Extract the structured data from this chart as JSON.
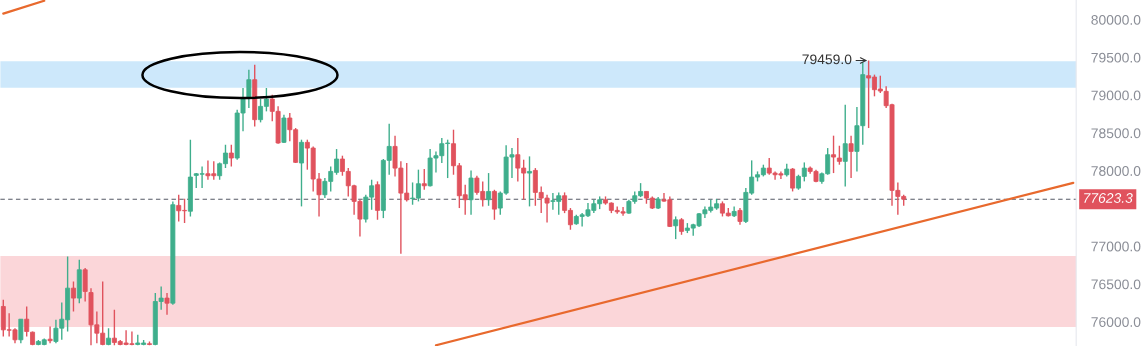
{
  "chart_data": {
    "type": "candlestick",
    "categories": [
      null,
      null,
      null,
      null,
      null,
      null,
      null,
      null,
      null,
      null,
      null,
      null,
      null,
      null,
      null,
      null,
      null,
      null,
      null,
      null,
      null,
      null,
      null,
      null,
      null,
      null,
      null,
      null,
      null,
      null,
      null,
      null,
      null,
      null,
      null,
      null,
      null,
      null,
      null,
      null,
      null,
      null,
      null,
      null,
      null,
      null,
      null,
      null,
      null,
      null,
      null,
      null,
      null,
      null,
      null,
      null,
      null,
      null,
      null,
      null,
      null,
      null,
      null,
      null,
      null,
      null,
      null,
      null,
      null,
      null,
      null,
      null,
      null,
      null,
      null,
      null,
      null,
      null,
      null,
      null,
      null,
      null,
      null,
      null,
      null,
      null,
      null,
      null,
      null,
      null,
      null,
      null,
      null,
      null,
      null,
      null,
      null,
      null,
      null,
      null,
      null,
      null,
      null,
      null,
      null,
      null,
      null,
      null,
      null,
      null,
      null,
      null,
      null,
      null,
      null,
      null,
      null,
      null,
      null,
      null,
      null,
      null,
      null,
      null,
      null,
      null,
      null,
      null,
      null,
      null,
      null,
      null,
      null,
      null,
      null,
      null,
      null,
      null,
      null,
      null,
      null,
      null,
      null,
      null,
      null,
      null,
      null,
      null,
      null,
      null,
      null,
      null,
      null,
      null,
      null,
      null,
      null,
      null,
      null,
      null,
      null,
      null,
      null,
      null,
      null,
      null,
      null,
      null,
      null,
      null,
      null,
      null,
      null,
      null,
      null,
      null,
      null,
      null,
      null,
      null,
      null,
      null,
      null,
      null
    ],
    "ylim": [
      75680,
      80260
    ],
    "yticks": [
      {
        "value": 76000,
        "label": "76000.0"
      },
      {
        "value": 76500,
        "label": "76500.0"
      },
      {
        "value": 77000,
        "label": "77000.0"
      },
      {
        "value": 78000,
        "label": "78000.0"
      },
      {
        "value": 78500,
        "label": "78500.0"
      },
      {
        "value": 79000,
        "label": "79000.0"
      },
      {
        "value": 79500,
        "label": "79500.0"
      },
      {
        "value": 80000,
        "label": "80000.0"
      }
    ],
    "tick_labels": "y",
    "grid": false,
    "legend": false,
    "ohlc": [
      [
        76203,
        76292,
        75806,
        75894
      ],
      [
        75894,
        76115,
        75806,
        75890
      ],
      [
        75894,
        75916,
        75718,
        75762
      ],
      [
        75762,
        76035,
        75718,
        76035
      ],
      [
        76035,
        76203,
        75806,
        75872
      ],
      [
        75863,
        75872,
        75690,
        75700
      ],
      [
        75700,
        75760,
        75690,
        75740
      ],
      [
        75700,
        75780,
        75690,
        75762
      ],
      [
        75770,
        75938,
        75718,
        75750
      ],
      [
        75740,
        76027,
        75718,
        75916
      ],
      [
        75916,
        76256,
        75762,
        76035
      ],
      [
        76027,
        76865,
        75872,
        76446
      ],
      [
        76446,
        76534,
        76137,
        76314
      ],
      [
        76314,
        76821,
        76247,
        76689
      ],
      [
        76689,
        76711,
        76269,
        76402
      ],
      [
        76388,
        76446,
        75690,
        75960
      ],
      [
        75960,
        76137,
        75718,
        75850
      ],
      [
        75850,
        76534,
        75690,
        75700
      ],
      [
        75700,
        75916,
        75690,
        75784
      ],
      [
        75784,
        76159,
        75690,
        75727
      ],
      [
        75740,
        75760,
        75690,
        75700
      ],
      [
        75720,
        75890,
        75690,
        75700
      ],
      [
        75710,
        75872,
        75690,
        75700
      ],
      [
        75700,
        75828,
        75690,
        75720
      ],
      [
        75700,
        75760,
        75690,
        75720
      ],
      [
        75710,
        75740,
        75690,
        75700
      ],
      [
        75700,
        76380,
        75690,
        76269
      ],
      [
        76269,
        76468,
        76159,
        76314
      ],
      [
        76314,
        76380,
        76093,
        76247
      ],
      [
        76247,
        77594,
        76225,
        77550
      ],
      [
        77541,
        77682,
        77329,
        77470
      ],
      [
        77475,
        77629,
        77307,
        77470
      ],
      [
        77464,
        78411,
        77395,
        77916
      ],
      [
        77938,
        77969,
        77770,
        77960
      ],
      [
        77955,
        78057,
        77770,
        77960
      ],
      [
        77960,
        78137,
        77881,
        77934
      ],
      [
        77960,
        78124,
        77881,
        77934
      ],
      [
        77934,
        78110,
        77881,
        78093
      ],
      [
        78093,
        78345,
        78035,
        78234
      ],
      [
        78234,
        78345,
        78057,
        78168
      ],
      [
        78168,
        78808,
        78146,
        78764
      ],
      [
        78764,
        79095,
        78521,
        78963
      ],
      [
        78963,
        79338,
        78830,
        79205
      ],
      [
        79205,
        79404,
        78587,
        78676
      ],
      [
        78676,
        78949,
        78640,
        78852
      ],
      [
        78852,
        79095,
        78786,
        78949
      ],
      [
        78949,
        79007,
        78654,
        78786
      ],
      [
        78786,
        78852,
        78358,
        78367
      ],
      [
        78376,
        78742,
        78367,
        78698
      ],
      [
        78698,
        78764,
        78389,
        78543
      ],
      [
        78543,
        78565,
        78102,
        78111
      ],
      [
        78102,
        78411,
        77528,
        78376
      ],
      [
        78376,
        78411,
        78014,
        78300
      ],
      [
        78300,
        78322,
        77726,
        77890
      ],
      [
        77890,
        77969,
        77395,
        77682
      ],
      [
        77682,
        77903,
        77638,
        77859
      ],
      [
        77859,
        78057,
        77726,
        77991
      ],
      [
        77978,
        78287,
        77947,
        78155
      ],
      [
        78155,
        78199,
        77934,
        77991
      ],
      [
        77991,
        78035,
        77660,
        77801
      ],
      [
        77801,
        77815,
        77417,
        77594
      ],
      [
        77594,
        77616,
        77130,
        77360
      ],
      [
        77360,
        77682,
        77316,
        77651
      ],
      [
        77651,
        77881,
        77483,
        77801
      ],
      [
        77815,
        77859,
        77351,
        77475
      ],
      [
        77475,
        78155,
        77373,
        78137
      ],
      [
        78137,
        78622,
        77947,
        78322
      ],
      [
        78322,
        78464,
        77925,
        78035
      ],
      [
        78035,
        78124,
        76901,
        77704
      ],
      [
        77704,
        78102,
        77594,
        77616
      ],
      [
        77630,
        77845,
        77550,
        77638
      ],
      [
        77638,
        78014,
        77594,
        77828
      ],
      [
        77828,
        78022,
        77748,
        77801
      ],
      [
        77801,
        78287,
        77792,
        78168
      ],
      [
        78168,
        78256,
        77978,
        78199
      ],
      [
        78199,
        78433,
        78102,
        78358
      ],
      [
        78360,
        78411,
        77903,
        78367
      ],
      [
        78358,
        78543,
        77947,
        78066
      ],
      [
        78066,
        78102,
        77506,
        77669
      ],
      [
        77682,
        77815,
        77417,
        77616
      ],
      [
        77616,
        78004,
        77417,
        77903
      ],
      [
        77903,
        77934,
        77682,
        77713
      ],
      [
        77726,
        77859,
        77528,
        77616
      ],
      [
        77616,
        77969,
        77536,
        77726
      ],
      [
        77726,
        77748,
        77351,
        77492
      ],
      [
        77506,
        77726,
        77417,
        77704
      ],
      [
        77704,
        78336,
        77682,
        78181
      ],
      [
        78181,
        78300,
        77903,
        78212
      ],
      [
        78212,
        78433,
        77859,
        78035
      ],
      [
        78035,
        78146,
        77616,
        77969
      ],
      [
        77969,
        78190,
        77528,
        77991
      ],
      [
        78004,
        78035,
        77536,
        77713
      ],
      [
        77713,
        77792,
        77439,
        77638
      ],
      [
        77638,
        77682,
        77316,
        77572
      ],
      [
        77594,
        77704,
        77483,
        77603
      ],
      [
        77594,
        77713,
        77417,
        77669
      ],
      [
        77669,
        77713,
        77439,
        77475
      ],
      [
        77475,
        77506,
        77219,
        77285
      ],
      [
        77298,
        77417,
        77285,
        77395
      ],
      [
        77395,
        77439,
        77263,
        77417
      ],
      [
        77404,
        77572,
        77386,
        77483
      ],
      [
        77475,
        77616,
        77439,
        77563
      ],
      [
        77563,
        77660,
        77492,
        77616
      ],
      [
        77616,
        77660,
        77550,
        77572
      ],
      [
        77572,
        77581,
        77439,
        77475
      ],
      [
        77475,
        77528,
        77430,
        77457
      ],
      [
        77457,
        77519,
        77404,
        77439
      ],
      [
        77439,
        77616,
        77430,
        77594
      ],
      [
        77594,
        77726,
        77563,
        77669
      ],
      [
        77669,
        77836,
        77651,
        77726
      ],
      [
        77726,
        77726,
        77563,
        77638
      ],
      [
        77638,
        77660,
        77492,
        77506
      ],
      [
        77506,
        77651,
        77492,
        77625
      ],
      [
        77616,
        77704,
        77590,
        77598
      ],
      [
        77616,
        77660,
        77254,
        77263
      ],
      [
        77271,
        77395,
        77095,
        77351
      ],
      [
        77351,
        77373,
        77152,
        77197
      ],
      [
        77210,
        77307,
        77175,
        77241
      ],
      [
        77241,
        77298,
        77139,
        77285
      ],
      [
        77271,
        77439,
        77254,
        77430
      ],
      [
        77430,
        77528,
        77373,
        77483
      ],
      [
        77475,
        77616,
        77448,
        77519
      ],
      [
        77506,
        77625,
        77483,
        77563
      ],
      [
        77563,
        77594,
        77395,
        77439
      ],
      [
        77439,
        77506,
        77395,
        77404
      ],
      [
        77404,
        77528,
        77386,
        77461
      ],
      [
        77475,
        77506,
        77285,
        77329
      ],
      [
        77329,
        77770,
        77307,
        77713
      ],
      [
        77704,
        78137,
        77682,
        77916
      ],
      [
        77916,
        77991,
        77859,
        77947
      ],
      [
        77947,
        78080,
        77925,
        78035
      ],
      [
        78035,
        78168,
        77947,
        77969
      ],
      [
        77969,
        77991,
        77881,
        77947
      ],
      [
        77960,
        77991,
        77890,
        77943
      ],
      [
        77947,
        78093,
        77925,
        78022
      ],
      [
        78022,
        78035,
        77726,
        77770
      ],
      [
        77770,
        77947,
        77748,
        77925
      ],
      [
        77925,
        78110,
        77859,
        78035
      ],
      [
        78035,
        78057,
        77960,
        77991
      ],
      [
        77991,
        78014,
        77846,
        77859
      ],
      [
        77859,
        77978,
        77828,
        77960
      ],
      [
        77960,
        78300,
        77947,
        78212
      ],
      [
        78212,
        78464,
        77969,
        78181
      ],
      [
        78168,
        78331,
        78080,
        78124
      ],
      [
        78124,
        78874,
        77792,
        78358
      ],
      [
        78358,
        78464,
        77903,
        78256
      ],
      [
        78256,
        78843,
        77991,
        78596
      ],
      [
        78596,
        79435,
        78345,
        79272
      ],
      [
        79258,
        79459,
        78565,
        79227
      ],
      [
        79240,
        79272,
        78985,
        79073
      ],
      [
        79082,
        79258,
        79029,
        79055
      ],
      [
        79051,
        79117,
        78830,
        78861
      ],
      [
        78874,
        78887,
        77536,
        77740
      ],
      [
        77740,
        77845,
        77417,
        77660
      ],
      [
        77660,
        77682,
        77536,
        77623.3
      ],
      null,
      null,
      null,
      null,
      null,
      null,
      null,
      null,
      null,
      null,
      null,
      null,
      null,
      null,
      null,
      null,
      null,
      null,
      null,
      null,
      null,
      null,
      null,
      null,
      null,
      null,
      null,
      null,
      null
    ],
    "colors": [
      "#e0525d",
      "#e0525d",
      "#e0525d",
      "#3fae8c",
      "#e0525d",
      "#e0525d",
      "#3fae8c",
      "#3fae8c",
      "#e0525d",
      "#3fae8c",
      "#3fae8c",
      "#3fae8c",
      "#e0525d",
      "#3fae8c",
      "#e0525d",
      "#e0525d",
      "#e0525d",
      "#e0525d",
      "#3fae8c",
      "#e0525d",
      "#e0525d",
      "#e0525d",
      "#e0525d",
      "#3fae8c",
      "#3fae8c",
      "#e0525d",
      "#3fae8c",
      "#3fae8c",
      "#e0525d",
      "#3fae8c",
      "#e0525d",
      "#e0525d",
      "#3fae8c",
      "#3fae8c",
      "#3fae8c",
      "#e0525d",
      "#e0525d",
      "#3fae8c",
      "#3fae8c",
      "#e0525d",
      "#3fae8c",
      "#3fae8c",
      "#3fae8c",
      "#e0525d",
      "#3fae8c",
      "#3fae8c",
      "#e0525d",
      "#e0525d",
      "#3fae8c",
      "#e0525d",
      "#e0525d",
      "#3fae8c",
      "#e0525d",
      "#e0525d",
      "#e0525d",
      "#3fae8c",
      "#3fae8c",
      "#3fae8c",
      "#e0525d",
      "#e0525d",
      "#e0525d",
      "#e0525d",
      "#3fae8c",
      "#3fae8c",
      "#e0525d",
      "#3fae8c",
      "#3fae8c",
      "#e0525d",
      "#e0525d",
      "#e0525d",
      "#3fae8c",
      "#3fae8c",
      "#e0525d",
      "#3fae8c",
      "#3fae8c",
      "#3fae8c",
      "#3fae8c",
      "#e0525d",
      "#e0525d",
      "#e0525d",
      "#3fae8c",
      "#e0525d",
      "#e0525d",
      "#3fae8c",
      "#e0525d",
      "#3fae8c",
      "#3fae8c",
      "#3fae8c",
      "#e0525d",
      "#e0525d",
      "#3fae8c",
      "#e0525d",
      "#e0525d",
      "#e0525d",
      "#3fae8c",
      "#3fae8c",
      "#e0525d",
      "#e0525d",
      "#3fae8c",
      "#3fae8c",
      "#3fae8c",
      "#3fae8c",
      "#3fae8c",
      "#e0525d",
      "#e0525d",
      "#e0525d",
      "#e0525d",
      "#3fae8c",
      "#3fae8c",
      "#3fae8c",
      "#e0525d",
      "#e0525d",
      "#3fae8c",
      "#e0525d",
      "#e0525d",
      "#3fae8c",
      "#e0525d",
      "#3fae8c",
      "#3fae8c",
      "#3fae8c",
      "#3fae8c",
      "#3fae8c",
      "#3fae8c",
      "#e0525d",
      "#e0525d",
      "#3fae8c",
      "#e0525d",
      "#3fae8c",
      "#3fae8c",
      "#3fae8c",
      "#3fae8c",
      "#e0525d",
      "#e0525d",
      "#e0525d",
      "#3fae8c",
      "#e0525d",
      "#3fae8c",
      "#3fae8c",
      "#e0525d",
      "#e0525d",
      "#3fae8c",
      "#3fae8c",
      "#e0525d",
      "#e0525d",
      "#3fae8c",
      "#e0525d",
      "#3fae8c",
      "#3fae8c",
      "#e0525d",
      "#e0525d",
      "#e0525d",
      "#e0525d",
      "#e0525d",
      "#e0525d",
      "#e0525d",
      null,
      null,
      null,
      null,
      null,
      null,
      null,
      null,
      null,
      null,
      null,
      null,
      null,
      null,
      null,
      null,
      null,
      null,
      null,
      null,
      null,
      null,
      null,
      null,
      null,
      null,
      null,
      null,
      null
    ],
    "series": [
      {
        "type": "line",
        "color": "#e8692d",
        "values": [
          null,
          null,
          null,
          null,
          null,
          null,
          null,
          null,
          null,
          null,
          null,
          null,
          null,
          null,
          null,
          null,
          null,
          null,
          null,
          null,
          null,
          null,
          null,
          null,
          null,
          null,
          null,
          null,
          null,
          null,
          null,
          null,
          null,
          null,
          null,
          null,
          null,
          null,
          null,
          null,
          null,
          null,
          null,
          null,
          null,
          null,
          null,
          null,
          null,
          null,
          null,
          null,
          null,
          null,
          null,
          null,
          null,
          null,
          null,
          null,
          null,
          null,
          null,
          null,
          null,
          null,
          null,
          null,
          null,
          null,
          null,
          null,
          null,
          null,
          75690,
          null,
          null,
          null,
          null,
          null,
          null,
          null,
          null,
          null,
          null,
          null,
          null,
          null,
          null,
          null,
          null,
          null,
          null,
          null,
          null,
          null,
          null,
          null,
          null,
          null,
          null,
          null,
          null,
          null,
          null,
          null,
          null,
          null,
          null,
          null,
          null,
          null,
          null,
          null,
          null,
          null,
          null,
          null,
          null,
          null,
          null,
          null,
          null,
          null,
          null,
          null,
          null,
          null,
          null,
          null,
          null,
          null,
          null,
          null,
          null,
          null,
          null,
          null,
          null,
          null,
          null,
          null,
          null,
          null,
          null,
          null,
          null,
          null,
          null,
          null,
          null,
          null,
          null,
          null,
          null,
          null,
          null,
          null,
          null,
          null,
          null,
          null,
          null,
          null,
          null,
          null,
          null,
          null,
          null,
          null,
          null,
          null,
          null,
          null,
          null,
          null,
          null,
          null,
          null,
          null,
          null,
          null,
          null,
          77840
        ]
      },
      {
        "type": "line",
        "color": "#e8692d",
        "values": [
          80080,
          null,
          null,
          null,
          null,
          null,
          null,
          80250,
          null,
          null,
          null,
          null,
          null,
          null,
          null,
          null,
          null,
          null,
          null,
          null,
          null,
          null,
          null,
          null,
          null,
          null,
          null,
          null,
          null,
          null,
          null,
          null,
          null,
          null,
          null,
          null,
          null,
          null,
          null,
          null,
          null,
          null,
          null,
          null,
          null,
          null,
          null,
          null,
          null,
          null,
          null,
          null,
          null,
          null,
          null,
          null,
          null,
          null,
          null,
          null,
          null,
          null,
          null,
          null,
          null,
          null,
          null,
          null,
          null,
          null,
          null,
          null,
          null,
          null,
          null,
          null,
          null,
          null,
          null,
          null,
          null,
          null,
          null,
          null,
          null,
          null,
          null,
          null,
          null,
          null,
          null,
          null,
          null,
          null,
          null,
          null,
          null,
          null,
          null,
          null,
          null,
          null,
          null,
          null,
          null,
          null,
          null,
          null,
          null,
          null,
          null,
          null,
          null,
          null,
          null,
          null,
          null,
          null,
          null,
          null,
          null,
          null,
          null,
          null,
          null,
          null,
          null,
          null,
          null,
          null,
          null,
          null,
          null,
          null,
          null,
          null,
          null,
          null,
          null,
          null,
          null,
          null,
          null,
          null,
          null,
          null,
          null,
          null,
          null,
          null,
          null,
          null,
          null,
          null,
          null,
          null,
          null,
          null,
          null,
          null,
          null,
          null,
          null,
          null,
          null,
          null,
          null,
          null,
          null,
          null,
          null,
          null,
          null,
          null,
          null,
          null,
          null,
          null,
          null,
          null,
          null,
          null,
          null,
          null
        ]
      }
    ],
    "bands": [
      {
        "axis": "y",
        "from": 79100,
        "to": 79450,
        "color": "#cde8fb"
      },
      {
        "axis": "y",
        "from": 75930,
        "to": 76870,
        "color": "#fbd6d9"
      }
    ],
    "ref_lines": [
      {
        "axis": "y",
        "value": 77623.3,
        "label": "77623.3",
        "color": "#555a66",
        "line_style": "dashed"
      }
    ],
    "annotations": [
      {
        "text": "79459.0",
        "y": 79459
      }
    ]
  }
}
